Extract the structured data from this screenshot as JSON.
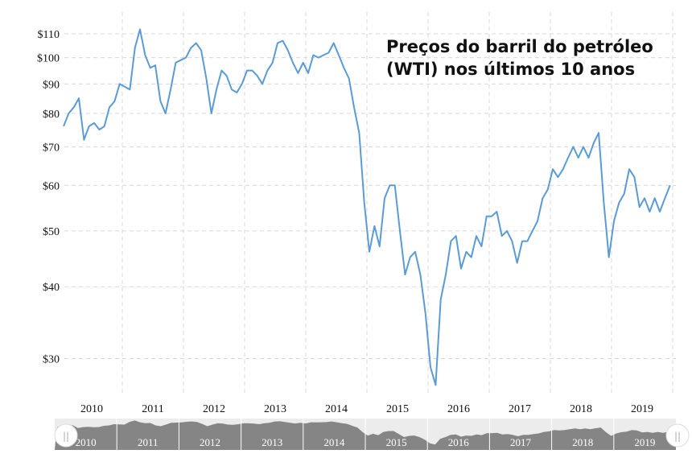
{
  "chart_data": {
    "type": "line",
    "title_line1": "Preços do barril do petróleo",
    "title_line2": "(WTI) nos últimos 10 anos",
    "xlabel": "",
    "ylabel": "",
    "y_scale": "log",
    "ylim": [
      26,
      120
    ],
    "xlim": [
      "2010-01",
      "2020-01"
    ],
    "grid": true,
    "line_color": "#5b9bd5",
    "y_ticks": [
      "$30",
      "$40",
      "$50",
      "$60",
      "$70",
      "$80",
      "$90",
      "$100",
      "$110"
    ],
    "y_tick_values": [
      30,
      40,
      50,
      60,
      70,
      80,
      90,
      100,
      110
    ],
    "x_ticks": [
      "2010",
      "2011",
      "2012",
      "2013",
      "2014",
      "2015",
      "2016",
      "2017",
      "2018",
      "2019"
    ],
    "series": [
      {
        "x": [
          "2010-01",
          "2010-02",
          "2010-03",
          "2010-04",
          "2010-05",
          "2010-06",
          "2010-07",
          "2010-08",
          "2010-09",
          "2010-10",
          "2010-11",
          "2010-12",
          "2011-01",
          "2011-02",
          "2011-03",
          "2011-04",
          "2011-05",
          "2011-06",
          "2011-07",
          "2011-08",
          "2011-09",
          "2011-10",
          "2011-11",
          "2011-12",
          "2012-01",
          "2012-02",
          "2012-03",
          "2012-04",
          "2012-05",
          "2012-06",
          "2012-07",
          "2012-08",
          "2012-09",
          "2012-10",
          "2012-11",
          "2012-12",
          "2013-01",
          "2013-02",
          "2013-03",
          "2013-04",
          "2013-05",
          "2013-06",
          "2013-07",
          "2013-08",
          "2013-09",
          "2013-10",
          "2013-11",
          "2013-12",
          "2014-01",
          "2014-02",
          "2014-03",
          "2014-04",
          "2014-05",
          "2014-06",
          "2014-07",
          "2014-08",
          "2014-09",
          "2014-10",
          "2014-11",
          "2014-12",
          "2015-01",
          "2015-02",
          "2015-03",
          "2015-04",
          "2015-05",
          "2015-06",
          "2015-07",
          "2015-08",
          "2015-09",
          "2015-10",
          "2015-11",
          "2015-12",
          "2016-01",
          "2016-02",
          "2016-03",
          "2016-04",
          "2016-05",
          "2016-06",
          "2016-07",
          "2016-08",
          "2016-09",
          "2016-10",
          "2016-11",
          "2016-12",
          "2017-01",
          "2017-02",
          "2017-03",
          "2017-04",
          "2017-05",
          "2017-06",
          "2017-07",
          "2017-08",
          "2017-09",
          "2017-10",
          "2017-11",
          "2017-12",
          "2018-01",
          "2018-02",
          "2018-03",
          "2018-04",
          "2018-05",
          "2018-06",
          "2018-07",
          "2018-08",
          "2018-09",
          "2018-10",
          "2018-11",
          "2018-12",
          "2019-01",
          "2019-02",
          "2019-03",
          "2019-04",
          "2019-05",
          "2019-06",
          "2019-07",
          "2019-08",
          "2019-09",
          "2019-10",
          "2019-11",
          "2019-12"
        ],
        "values": [
          76,
          80,
          82,
          85,
          72,
          76,
          77,
          75,
          76,
          82,
          84,
          90,
          89,
          88,
          104,
          112,
          101,
          96,
          97,
          84,
          80,
          88,
          98,
          99,
          100,
          104,
          106,
          103,
          92,
          80,
          88,
          95,
          93,
          88,
          87,
          90,
          95,
          95,
          93,
          90,
          95,
          98,
          106,
          107,
          103,
          98,
          94,
          98,
          94,
          101,
          100,
          101,
          102,
          106,
          101,
          96,
          92,
          82,
          74,
          56,
          46,
          51,
          47,
          57,
          60,
          60,
          50,
          42,
          45,
          46,
          42,
          36,
          29,
          27,
          38,
          42,
          48,
          49,
          43,
          46,
          45,
          49,
          47,
          53,
          53,
          54,
          49,
          50,
          48,
          44,
          48,
          48,
          50,
          52,
          57,
          59,
          64,
          62,
          64,
          67,
          70,
          67,
          70,
          67,
          71,
          74,
          56,
          45,
          52,
          56,
          58,
          64,
          62,
          55,
          57,
          54,
          57,
          54,
          57,
          60
        ]
      }
    ]
  },
  "navigator": {
    "labels": [
      "2010",
      "2011",
      "2012",
      "2013",
      "2014",
      "2015",
      "2016",
      "2017",
      "2018",
      "2019"
    ],
    "handle_glyph": "||"
  }
}
